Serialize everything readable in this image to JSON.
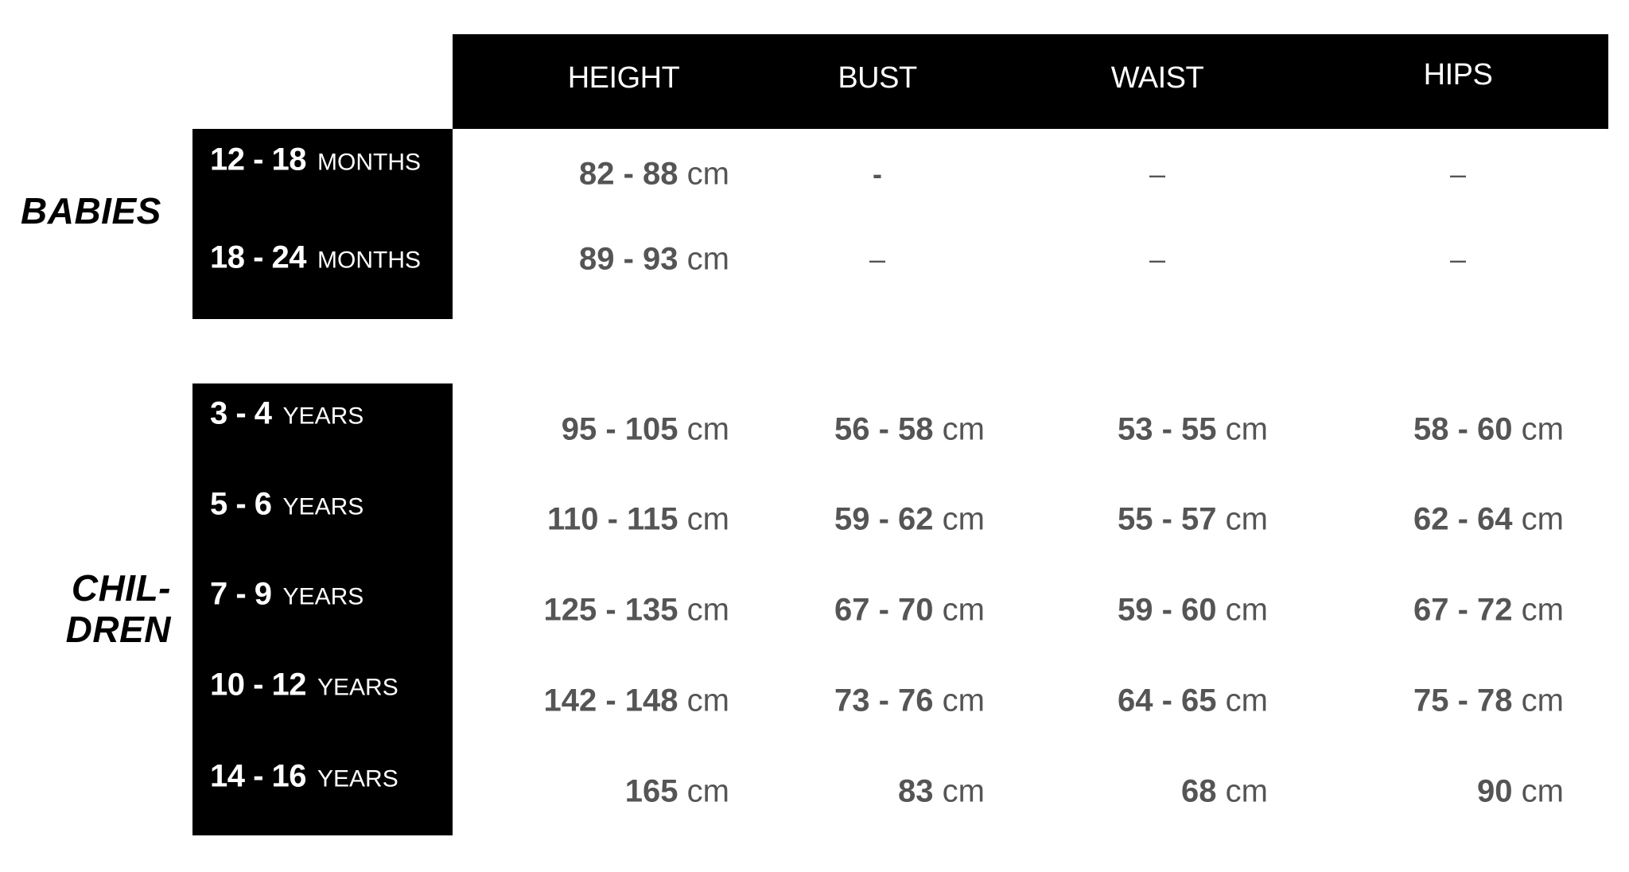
{
  "columns": [
    "HEIGHT",
    "BUST",
    "WAIST",
    "HIPS"
  ],
  "groups": [
    {
      "label": "BABIES",
      "rows": [
        {
          "range": "12 - 18",
          "unit": "MONTHS",
          "height": {
            "n": "82 - 88",
            "u": "cm"
          },
          "bust": "-",
          "waist": "–",
          "hips": "–"
        },
        {
          "range": "18 - 24",
          "unit": "MONTHS",
          "height": {
            "n": "89 - 93",
            "u": "cm"
          },
          "bust": "–",
          "waist": "–",
          "hips": "–"
        }
      ]
    },
    {
      "label_line1": "CHIL-",
      "label_line2": "DREN",
      "rows": [
        {
          "range": "3 - 4",
          "unit": "YEARS",
          "height": {
            "n": "95 - 105",
            "u": "cm"
          },
          "bust": {
            "n": "56 - 58",
            "u": "cm"
          },
          "waist": {
            "n": "53 - 55",
            "u": "cm"
          },
          "hips": {
            "n": "58 - 60",
            "u": "cm"
          }
        },
        {
          "range": "5 - 6",
          "unit": "YEARS",
          "height": {
            "n": "110 - 115",
            "u": "cm"
          },
          "bust": {
            "n": "59 - 62",
            "u": "cm"
          },
          "waist": {
            "n": "55 - 57",
            "u": "cm"
          },
          "hips": {
            "n": "62 - 64",
            "u": "cm"
          }
        },
        {
          "range": "7 - 9",
          "unit": "YEARS",
          "height": {
            "n": "125 - 135",
            "u": "cm"
          },
          "bust": {
            "n": "67 - 70",
            "u": "cm"
          },
          "waist": {
            "n": "59 - 60",
            "u": "cm"
          },
          "hips": {
            "n": "67 - 72",
            "u": "cm"
          }
        },
        {
          "range": "10 - 12",
          "unit": "YEARS",
          "height": {
            "n": "142 - 148",
            "u": "cm"
          },
          "bust": {
            "n": "73 - 76",
            "u": "cm"
          },
          "waist": {
            "n": "64 - 65",
            "u": "cm"
          },
          "hips": {
            "n": "75 - 78",
            "u": "cm"
          }
        },
        {
          "range": "14 - 16",
          "unit": "YEARS",
          "height": {
            "n": "165",
            "u": "cm"
          },
          "bust": {
            "n": "83",
            "u": "cm"
          },
          "waist": {
            "n": "68",
            "u": "cm"
          },
          "hips": {
            "n": "90",
            "u": "cm"
          }
        }
      ]
    }
  ],
  "colors": {
    "header_bg": "#000000",
    "value_text": "#555555"
  }
}
